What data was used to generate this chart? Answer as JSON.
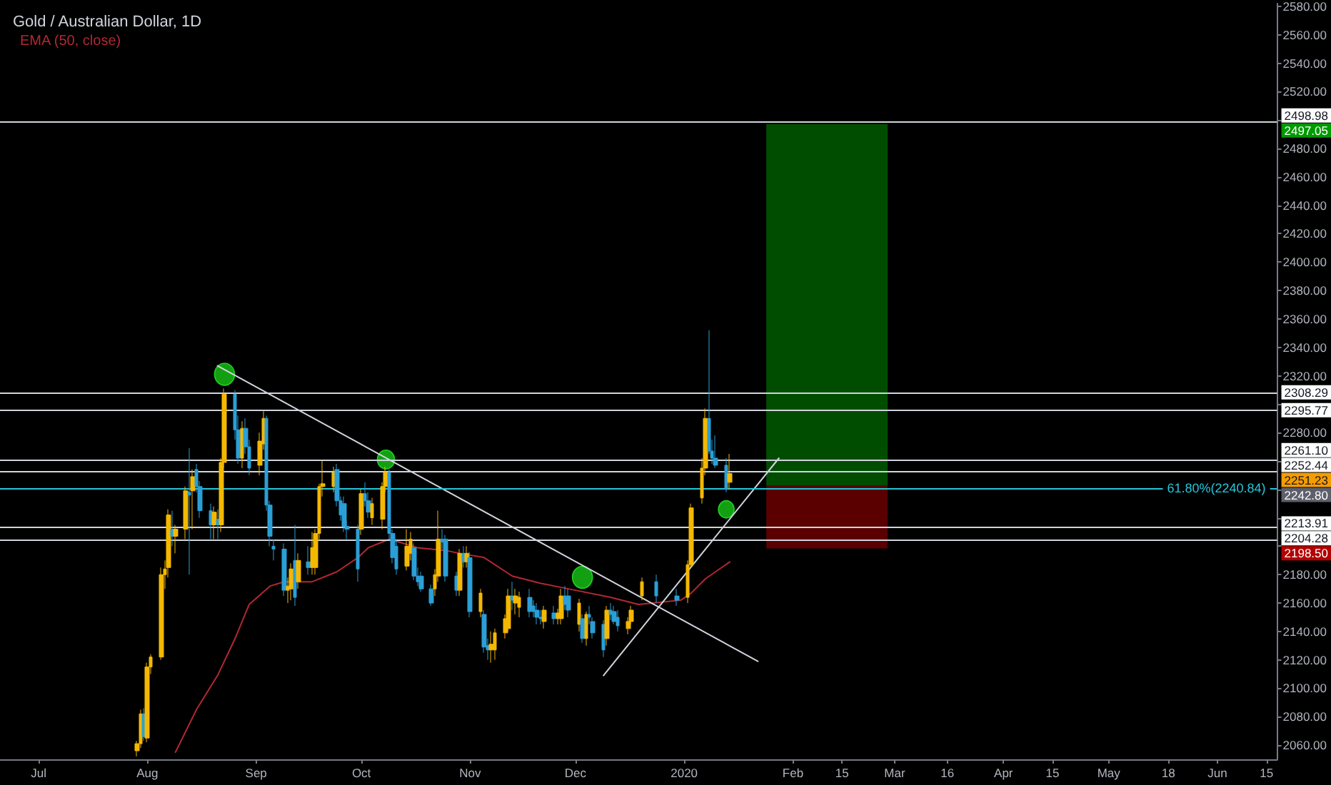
{
  "chart_data": {
    "type": "candlestick",
    "title": "Gold / Australian Dollar, 1D",
    "x": [
      "2019-07-29",
      "2019-07-30",
      "2019-07-31",
      "2019-08-01",
      "2019-08-02",
      "2019-08-05",
      "2019-08-06",
      "2019-08-07",
      "2019-08-08",
      "2019-08-09",
      "2019-08-12",
      "2019-08-13",
      "2019-08-14",
      "2019-08-15",
      "2019-08-16",
      "2019-08-19",
      "2019-08-20",
      "2019-08-21",
      "2019-08-22",
      "2019-08-23",
      "2019-08-26",
      "2019-08-27",
      "2019-08-28",
      "2019-08-29",
      "2019-08-30",
      "2019-09-02",
      "2019-09-03",
      "2019-09-04",
      "2019-09-05",
      "2019-09-06",
      "2019-09-09",
      "2019-09-10",
      "2019-09-11",
      "2019-09-12",
      "2019-09-13",
      "2019-09-16",
      "2019-09-17",
      "2019-09-18",
      "2019-09-19",
      "2019-09-20",
      "2019-09-23",
      "2019-09-24",
      "2019-09-25",
      "2019-09-26",
      "2019-09-27",
      "2019-09-30",
      "2019-10-01",
      "2019-10-02",
      "2019-10-03",
      "2019-10-04",
      "2019-10-07",
      "2019-10-08",
      "2019-10-09",
      "2019-10-10",
      "2019-10-11",
      "2019-10-14",
      "2019-10-15",
      "2019-10-16",
      "2019-10-17",
      "2019-10-18",
      "2019-10-21",
      "2019-10-22",
      "2019-10-23",
      "2019-10-24",
      "2019-10-25",
      "2019-10-28",
      "2019-10-29",
      "2019-10-30",
      "2019-10-31",
      "2019-11-01",
      "2019-11-04",
      "2019-11-05",
      "2019-11-06",
      "2019-11-07",
      "2019-11-08",
      "2019-11-11",
      "2019-11-12",
      "2019-11-13",
      "2019-11-14",
      "2019-11-15",
      "2019-11-18",
      "2019-11-19",
      "2019-11-20",
      "2019-11-21",
      "2019-11-22",
      "2019-11-25",
      "2019-11-26",
      "2019-11-27",
      "2019-11-28",
      "2019-11-29",
      "2019-12-02",
      "2019-12-03",
      "2019-12-04",
      "2019-12-05",
      "2019-12-06",
      "2019-12-09",
      "2019-12-10",
      "2019-12-11",
      "2019-12-12",
      "2019-12-13",
      "2019-12-16",
      "2019-12-17",
      "2019-12-20",
      "2019-12-24",
      "2019-12-30",
      "2020-01-02",
      "2020-01-03",
      "2020-01-06",
      "2020-01-07",
      "2020-01-08",
      "2020-01-09",
      "2020-01-10",
      "2020-01-13",
      "2020-01-14"
    ],
    "ohlc": [
      [
        2056,
        2063,
        2052,
        2061
      ],
      [
        2061,
        2085,
        2058,
        2082
      ],
      [
        2082,
        2086,
        2063,
        2066
      ],
      [
        2065,
        2118,
        2062,
        2115
      ],
      [
        2115,
        2124,
        2110,
        2122
      ],
      [
        2122,
        2185,
        2120,
        2180
      ],
      [
        2180,
        2190,
        2170,
        2184
      ],
      [
        2185,
        2226,
        2178,
        2222
      ],
      [
        2212,
        2225,
        2200,
        2207
      ],
      [
        2207,
        2215,
        2195,
        2212
      ],
      [
        2212,
        2242,
        2205,
        2239
      ],
      [
        2238,
        2269,
        2180,
        2236
      ],
      [
        2239,
        2254,
        2212,
        2249
      ],
      [
        2254,
        2258,
        2238,
        2242
      ],
      [
        2242,
        2246,
        2220,
        2225
      ],
      [
        2225,
        2230,
        2205,
        2215
      ],
      [
        2215,
        2228,
        2205,
        2224
      ],
      [
        2219,
        2226,
        2205,
        2215
      ],
      [
        2215,
        2262,
        2210,
        2259
      ],
      [
        2259,
        2311,
        2255,
        2307
      ],
      [
        2307,
        2310,
        2275,
        2282
      ],
      [
        2282,
        2292,
        2258,
        2262
      ],
      [
        2262,
        2288,
        2255,
        2283
      ],
      [
        2283,
        2290,
        2265,
        2270
      ],
      [
        2270,
        2275,
        2250,
        2255
      ],
      [
        2257,
        2280,
        2250,
        2274
      ],
      [
        2272,
        2295,
        2268,
        2290
      ],
      [
        2290,
        2292,
        2225,
        2229
      ],
      [
        2229,
        2232,
        2200,
        2207
      ],
      [
        2200,
        2205,
        2190,
        2198
      ],
      [
        2198,
        2202,
        2165,
        2169
      ],
      [
        2169,
        2178,
        2160,
        2172
      ],
      [
        2170,
        2188,
        2162,
        2184
      ],
      [
        2190,
        2215,
        2158,
        2164
      ],
      [
        2175,
        2195,
        2170,
        2190
      ],
      [
        2189,
        2200,
        2180,
        2185
      ],
      [
        2185,
        2210,
        2180,
        2199
      ],
      [
        2185,
        2212,
        2180,
        2209
      ],
      [
        2209,
        2244,
        2205,
        2242
      ],
      [
        2242,
        2260,
        2235,
        2244
      ],
      [
        2242,
        2256,
        2238,
        2252
      ],
      [
        2254,
        2258,
        2228,
        2232
      ],
      [
        2232,
        2235,
        2218,
        2222
      ],
      [
        2230,
        2235,
        2210,
        2214
      ],
      [
        2214,
        2218,
        2205,
        2212
      ],
      [
        2212,
        2215,
        2175,
        2184
      ],
      [
        2212,
        2240,
        2208,
        2237
      ],
      [
        2237,
        2245,
        2228,
        2232
      ],
      [
        2232,
        2238,
        2220,
        2224
      ],
      [
        2220,
        2234,
        2215,
        2230
      ],
      [
        2219,
        2245,
        2212,
        2242
      ],
      [
        2242,
        2256,
        2238,
        2252
      ],
      [
        2252,
        2254,
        2205,
        2209
      ],
      [
        2209,
        2212,
        2188,
        2192
      ],
      [
        2200,
        2205,
        2180,
        2184
      ],
      [
        2186,
        2212,
        2183,
        2200
      ],
      [
        2195,
        2210,
        2190,
        2205
      ],
      [
        2199,
        2202,
        2176,
        2179
      ],
      [
        2179,
        2185,
        2172,
        2175
      ],
      [
        2179,
        2182,
        2168,
        2170
      ],
      [
        2170,
        2173,
        2158,
        2160
      ],
      [
        2170,
        2184,
        2165,
        2180
      ],
      [
        2179,
        2225,
        2175,
        2205
      ],
      [
        2205,
        2212,
        2198,
        2203
      ],
      [
        2205,
        2208,
        2175,
        2179
      ],
      [
        2179,
        2182,
        2165,
        2169
      ],
      [
        2169,
        2198,
        2165,
        2195
      ],
      [
        2195,
        2200,
        2185,
        2189
      ],
      [
        2189,
        2200,
        2185,
        2195
      ],
      [
        2192,
        2196,
        2150,
        2154
      ],
      [
        2154,
        2170,
        2150,
        2167
      ],
      [
        2152,
        2155,
        2125,
        2129
      ],
      [
        2130,
        2135,
        2120,
        2127
      ],
      [
        2127,
        2140,
        2118,
        2131
      ],
      [
        2127,
        2142,
        2120,
        2139
      ],
      [
        2139,
        2152,
        2135,
        2149
      ],
      [
        2142,
        2170,
        2140,
        2165
      ],
      [
        2165,
        2175,
        2155,
        2162
      ],
      [
        2160,
        2170,
        2152,
        2165
      ],
      [
        2157,
        2168,
        2150,
        2164
      ],
      [
        2164,
        2170,
        2150,
        2154
      ],
      [
        2158,
        2162,
        2150,
        2154
      ],
      [
        2155,
        2160,
        2145,
        2150
      ],
      [
        2150,
        2155,
        2145,
        2149
      ],
      [
        2147,
        2158,
        2142,
        2155
      ],
      [
        2153,
        2158,
        2145,
        2149
      ],
      [
        2149,
        2156,
        2145,
        2153
      ],
      [
        2149,
        2170,
        2145,
        2165
      ],
      [
        2165,
        2172,
        2155,
        2159
      ],
      [
        2165,
        2170,
        2150,
        2155
      ],
      [
        2145,
        2163,
        2140,
        2160
      ],
      [
        2149,
        2152,
        2132,
        2135
      ],
      [
        2135,
        2154,
        2130,
        2152
      ],
      [
        2152,
        2158,
        2145,
        2150
      ],
      [
        2147,
        2150,
        2135,
        2139
      ],
      [
        2145,
        2148,
        2122,
        2127
      ],
      [
        2135,
        2158,
        2130,
        2155
      ],
      [
        2155,
        2160,
        2148,
        2152
      ],
      [
        2154,
        2158,
        2145,
        2147
      ],
      [
        2150,
        2155,
        2140,
        2144
      ],
      [
        2142,
        2150,
        2138,
        2147
      ],
      [
        2147,
        2158,
        2145,
        2155
      ],
      [
        2165,
        2178,
        2162,
        2175
      ],
      [
        2175,
        2180,
        2160,
        2165
      ],
      [
        2165,
        2170,
        2158,
        2162
      ],
      [
        2164,
        2190,
        2160,
        2187
      ],
      [
        2187,
        2230,
        2185,
        2227
      ],
      [
        2234,
        2262,
        2230,
        2255
      ],
      [
        2255,
        2297,
        2250,
        2290
      ],
      [
        2290,
        2352,
        2265,
        2267
      ],
      [
        2267,
        2275,
        2258,
        2262
      ],
      [
        2262,
        2278,
        2255,
        2257
      ],
      [
        2257,
        2262,
        2238,
        2240
      ],
      [
        2245,
        2265,
        2240,
        2251.23
      ]
    ],
    "colors": [
      "#f5b800",
      "#f5b800",
      "#2b9fd6",
      "#f5b800",
      "#f5b800",
      "#f5b800",
      "#f5b800",
      "#f5b800",
      "#2b9fd6",
      "#f5b800",
      "#f5b800",
      "#2b9fd6",
      "#f5b800",
      "#2b9fd6",
      "#2b9fd6",
      "#2b9fd6",
      "#f5b800",
      "#2b9fd6",
      "#f5b800",
      "#f5b800",
      "#2b9fd6",
      "#2b9fd6",
      "#f5b800",
      "#2b9fd6",
      "#2b9fd6",
      "#f5b800",
      "#f5b800",
      "#2b9fd6",
      "#2b9fd6",
      "#2b9fd6",
      "#2b9fd6",
      "#f5b800",
      "#f5b800",
      "#2b9fd6",
      "#f5b800",
      "#2b9fd6",
      "#f5b800",
      "#f5b800",
      "#f5b800",
      "#f5b800",
      "#f5b800",
      "#2b9fd6",
      "#2b9fd6",
      "#2b9fd6",
      "#2b9fd6",
      "#2b9fd6",
      "#f5b800",
      "#2b9fd6",
      "#2b9fd6",
      "#f5b800",
      "#f5b800",
      "#f5b800",
      "#2b9fd6",
      "#2b9fd6",
      "#2b9fd6",
      "#f5b800",
      "#f5b800",
      "#2b9fd6",
      "#2b9fd6",
      "#2b9fd6",
      "#2b9fd6",
      "#f5b800",
      "#f5b800",
      "#2b9fd6",
      "#2b9fd6",
      "#2b9fd6",
      "#f5b800",
      "#2b9fd6",
      "#f5b800",
      "#2b9fd6",
      "#f5b800",
      "#2b9fd6",
      "#2b9fd6",
      "#f5b800",
      "#f5b800",
      "#f5b800",
      "#f5b800",
      "#2b9fd6",
      "#f5b800",
      "#f5b800",
      "#2b9fd6",
      "#2b9fd6",
      "#2b9fd6",
      "#2b9fd6",
      "#f5b800",
      "#2b9fd6",
      "#f5b800",
      "#f5b800",
      "#2b9fd6",
      "#2b9fd6",
      "#f5b800",
      "#2b9fd6",
      "#f5b800",
      "#2b9fd6",
      "#2b9fd6",
      "#2b9fd6",
      "#f5b800",
      "#2b9fd6",
      "#2b9fd6",
      "#2b9fd6",
      "#f5b800",
      "#f5b800",
      "#f5b800",
      "#2b9fd6",
      "#2b9fd6",
      "#f5b800",
      "#f5b800",
      "#f5b800",
      "#f5b800",
      "#2b9fd6",
      "#2b9fd6",
      "#2b9fd6",
      "#2b9fd6",
      "#f5b800"
    ],
    "series": [
      {
        "type": "line",
        "name": "EMA (50, close)",
        "color": "#b22833",
        "x": [
          "2019-08-09",
          "2019-08-15",
          "2019-08-21",
          "2019-08-26",
          "2019-08-30",
          "2019-09-05",
          "2019-09-09",
          "2019-09-17",
          "2019-09-24",
          "2019-09-30",
          "2019-10-03",
          "2019-10-09",
          "2019-10-17",
          "2019-10-25",
          "2019-10-29",
          "2019-11-05",
          "2019-11-13",
          "2019-11-21",
          "2019-11-29",
          "2019-12-11",
          "2019-12-19",
          "2019-12-31",
          "2020-01-03",
          "2020-01-07",
          "2020-01-14"
        ],
        "values": [
          2055,
          2085,
          2109,
          2135,
          2159,
          2172,
          2175,
          2175,
          2182,
          2192,
          2199,
          2205,
          2199,
          2197,
          2195,
          2192,
          2179,
          2174,
          2170,
          2164,
          2159,
          2162,
          2167,
          2177,
          2189
        ]
      },
      {
        "type": "line",
        "color": "#d1d4dc",
        "x": [
          "2019-08-21",
          "2020-01-22"
        ],
        "values": [
          2327,
          2119
        ]
      },
      {
        "type": "line",
        "color": "#d1d4dc",
        "x": [
          "2019-12-09",
          "2020-01-28"
        ],
        "values": [
          2109,
          2262
        ]
      }
    ],
    "xlim": [
      "2019-06-20",
      "2020-06-18"
    ],
    "xticks": [
      {
        "value": "2019-07-01",
        "label": "Jul"
      },
      {
        "value": "2019-08-01",
        "label": "Aug"
      },
      {
        "value": "2019-09-01",
        "label": "Sep"
      },
      {
        "value": "2019-10-01",
        "label": "Oct"
      },
      {
        "value": "2019-11-01",
        "label": "Nov"
      },
      {
        "value": "2019-12-01",
        "label": "Dec"
      },
      {
        "value": "2020-01-01",
        "label": "2020"
      },
      {
        "value": "2020-02-01",
        "label": "Feb"
      },
      {
        "value": "2020-02-15",
        "label": "15"
      },
      {
        "value": "2020-03-01",
        "label": "Mar"
      },
      {
        "value": "2020-03-16",
        "label": "16"
      },
      {
        "value": "2020-04-01",
        "label": "Apr"
      },
      {
        "value": "2020-04-15",
        "label": "15"
      },
      {
        "value": "2020-05-01",
        "label": "May"
      },
      {
        "value": "2020-05-18",
        "label": "18"
      },
      {
        "value": "2020-06-01",
        "label": "Jun"
      },
      {
        "value": "2020-06-15",
        "label": "15"
      }
    ],
    "ylim": [
      2050,
      2582
    ],
    "yticks": [
      {
        "value": 2060,
        "label": "2060.00"
      },
      {
        "value": 2080,
        "label": "2080.00"
      },
      {
        "value": 2100,
        "label": "2100.00"
      },
      {
        "value": 2120,
        "label": "2120.00"
      },
      {
        "value": 2140,
        "label": "2140.00"
      },
      {
        "value": 2160,
        "label": "2160.00"
      },
      {
        "value": 2180,
        "label": "2180.00"
      },
      {
        "value": 2200,
        "label": null
      },
      {
        "value": 2220,
        "label": null
      },
      {
        "value": 2240,
        "label": null
      },
      {
        "value": 2260,
        "label": null
      },
      {
        "value": 2280,
        "label": "2280.00"
      },
      {
        "value": 2300,
        "label": null
      },
      {
        "value": 2320,
        "label": "2320.00"
      },
      {
        "value": 2340,
        "label": "2340.00"
      },
      {
        "value": 2360,
        "label": "2360.00"
      },
      {
        "value": 2380,
        "label": "2380.00"
      },
      {
        "value": 2400,
        "label": "2400.00"
      },
      {
        "value": 2420,
        "label": "2420.00"
      },
      {
        "value": 2440,
        "label": "2440.00"
      },
      {
        "value": 2460,
        "label": "2460.00"
      },
      {
        "value": 2480,
        "label": "2480.00"
      },
      {
        "value": 2500,
        "label": null
      },
      {
        "value": 2520,
        "label": "2520.00"
      },
      {
        "value": 2540,
        "label": "2540.00"
      },
      {
        "value": 2560,
        "label": "2560.00"
      },
      {
        "value": 2580,
        "label": "2580.00"
      }
    ],
    "ref_lines": [
      {
        "axis": "y",
        "value": 2498.98,
        "label": "2498.98"
      },
      {
        "axis": "y",
        "value": 2308.29,
        "label": "2308.29"
      },
      {
        "axis": "y",
        "value": 2295.77,
        "label": "2295.77"
      },
      {
        "axis": "y",
        "value": 2261.1,
        "label": "2261.10"
      },
      {
        "axis": "y",
        "value": 2252.44,
        "label": "2252.44"
      },
      {
        "axis": "y",
        "value": 2213.91,
        "label": "2213.91"
      },
      {
        "axis": "y",
        "value": 2204.28,
        "label": "2204.28"
      },
      {
        "axis": "y",
        "value": 2240.84,
        "label": "61.80%(2240.84)",
        "color": "#26c6da"
      }
    ],
    "bands": [
      {
        "axis": "y",
        "from": 2242.8,
        "to": 2497.05,
        "color": "#009900"
      },
      {
        "axis": "y",
        "from": 2242.8,
        "to": 2198.5,
        "color": "#b30000"
      }
    ],
    "annotations": [
      "2251.23",
      "2242.80",
      "2497.05",
      "2198.50"
    ],
    "legend": "top left",
    "grid": false,
    "marker": "none"
  }
}
